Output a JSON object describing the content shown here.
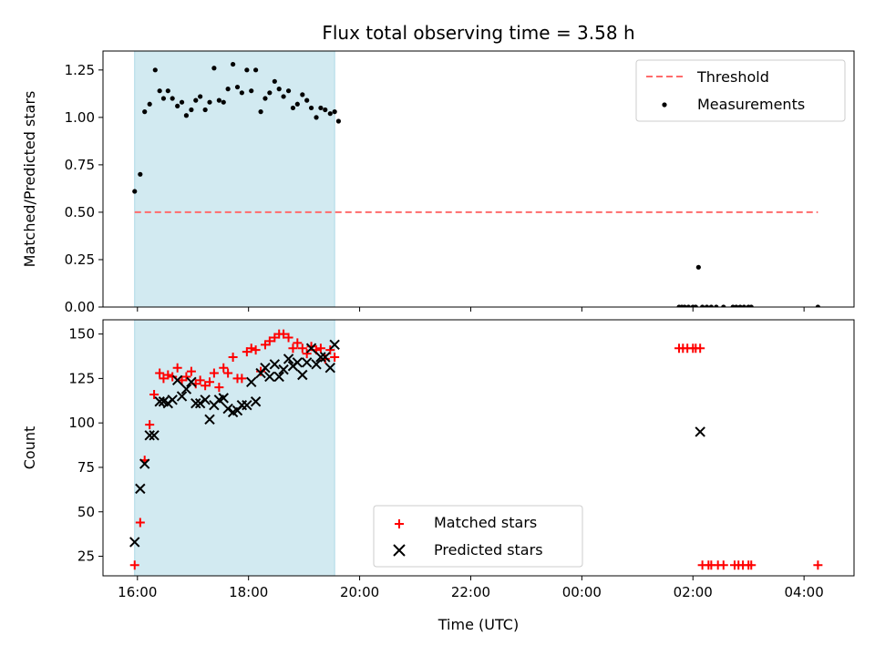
{
  "title": "Flux total observing time = 3.58 h",
  "colors": {
    "band": "#add8e6",
    "threshold": "#ff6b6b",
    "matched": "#ff0000",
    "predicted": "#000000",
    "measurement": "#000000"
  },
  "chart_data": [
    {
      "type": "scatter",
      "ylabel": "Matched/Predicted stars",
      "xlabel": "",
      "x_unit": "hours after 16:00 UTC",
      "xlim": [
        -0.62,
        12.9
      ],
      "ylim": [
        0,
        1.35
      ],
      "yticks": [
        "0.00",
        "0.25",
        "0.50",
        "0.75",
        "1.00",
        "1.25"
      ],
      "shaded_band": [
        -0.05,
        3.55
      ],
      "threshold": {
        "name": "Threshold",
        "value": 0.5,
        "x_range": [
          -0.05,
          12.25
        ]
      },
      "legend": [
        "Threshold",
        "Measurements"
      ],
      "legend_position": "upper-right",
      "series": [
        {
          "name": "Measurements",
          "points": [
            [
              -0.05,
              0.61
            ],
            [
              0.05,
              0.7
            ],
            [
              0.13,
              1.03
            ],
            [
              0.22,
              1.07
            ],
            [
              0.32,
              1.25
            ],
            [
              0.4,
              1.14
            ],
            [
              0.47,
              1.1
            ],
            [
              0.55,
              1.14
            ],
            [
              0.63,
              1.1
            ],
            [
              0.72,
              1.06
            ],
            [
              0.8,
              1.08
            ],
            [
              0.88,
              1.01
            ],
            [
              0.97,
              1.04
            ],
            [
              1.05,
              1.09
            ],
            [
              1.13,
              1.11
            ],
            [
              1.22,
              1.04
            ],
            [
              1.3,
              1.08
            ],
            [
              1.38,
              1.26
            ],
            [
              1.47,
              1.09
            ],
            [
              1.55,
              1.08
            ],
            [
              1.63,
              1.15
            ],
            [
              1.72,
              1.28
            ],
            [
              1.8,
              1.16
            ],
            [
              1.88,
              1.13
            ],
            [
              1.97,
              1.25
            ],
            [
              2.05,
              1.14
            ],
            [
              2.13,
              1.25
            ],
            [
              2.22,
              1.03
            ],
            [
              2.3,
              1.1
            ],
            [
              2.38,
              1.13
            ],
            [
              2.47,
              1.19
            ],
            [
              2.55,
              1.15
            ],
            [
              2.63,
              1.11
            ],
            [
              2.72,
              1.14
            ],
            [
              2.8,
              1.05
            ],
            [
              2.88,
              1.07
            ],
            [
              2.97,
              1.12
            ],
            [
              3.05,
              1.09
            ],
            [
              3.13,
              1.05
            ],
            [
              3.22,
              1.0
            ],
            [
              3.3,
              1.05
            ],
            [
              3.38,
              1.04
            ],
            [
              3.47,
              1.02
            ],
            [
              3.55,
              1.03
            ],
            [
              3.62,
              0.98
            ],
            [
              9.75,
              0.0
            ],
            [
              9.8,
              0.0
            ],
            [
              9.85,
              0.0
            ],
            [
              9.92,
              0.0
            ],
            [
              10.0,
              0.0
            ],
            [
              10.05,
              0.0
            ],
            [
              10.1,
              0.21
            ],
            [
              10.17,
              0.0
            ],
            [
              10.25,
              0.0
            ],
            [
              10.33,
              0.0
            ],
            [
              10.42,
              0.0
            ],
            [
              10.55,
              0.0
            ],
            [
              10.72,
              0.0
            ],
            [
              10.78,
              0.0
            ],
            [
              10.85,
              0.0
            ],
            [
              10.92,
              0.0
            ],
            [
              11.0,
              0.0
            ],
            [
              11.05,
              0.0
            ],
            [
              12.25,
              0.0
            ]
          ]
        }
      ]
    },
    {
      "type": "scatter",
      "ylabel": "Count",
      "xlabel": "Time (UTC)",
      "x_unit": "hours after 16:00 UTC",
      "xlim": [
        -0.62,
        12.9
      ],
      "ylim": [
        14,
        158
      ],
      "yticks": [
        "25",
        "50",
        "75",
        "100",
        "125",
        "150"
      ],
      "xticks": [
        {
          "value": 0,
          "label": "16:00"
        },
        {
          "value": 2,
          "label": "18:00"
        },
        {
          "value": 4,
          "label": "20:00"
        },
        {
          "value": 6,
          "label": "22:00"
        },
        {
          "value": 8,
          "label": "00:00"
        },
        {
          "value": 10,
          "label": "02:00"
        },
        {
          "value": 12,
          "label": "04:00"
        }
      ],
      "shaded_band": [
        -0.05,
        3.55
      ],
      "legend": [
        "Matched stars",
        "Predicted stars"
      ],
      "legend_position": "lower-center",
      "series": [
        {
          "name": "Matched stars",
          "marker": "plus",
          "points": [
            [
              -0.05,
              20
            ],
            [
              0.05,
              44
            ],
            [
              0.13,
              79
            ],
            [
              0.22,
              99
            ],
            [
              0.3,
              116
            ],
            [
              0.4,
              128
            ],
            [
              0.47,
              125
            ],
            [
              0.55,
              127
            ],
            [
              0.63,
              126
            ],
            [
              0.72,
              131
            ],
            [
              0.8,
              124
            ],
            [
              0.88,
              126
            ],
            [
              0.97,
              129
            ],
            [
              1.05,
              122
            ],
            [
              1.13,
              124
            ],
            [
              1.22,
              121
            ],
            [
              1.3,
              123
            ],
            [
              1.38,
              128
            ],
            [
              1.47,
              120
            ],
            [
              1.55,
              131
            ],
            [
              1.63,
              128
            ],
            [
              1.72,
              137
            ],
            [
              1.8,
              125
            ],
            [
              1.88,
              125
            ],
            [
              1.97,
              140
            ],
            [
              2.05,
              142
            ],
            [
              2.13,
              141
            ],
            [
              2.22,
              129
            ],
            [
              2.3,
              144
            ],
            [
              2.38,
              146
            ],
            [
              2.47,
              148
            ],
            [
              2.55,
              150
            ],
            [
              2.63,
              150
            ],
            [
              2.72,
              148
            ],
            [
              2.8,
              142
            ],
            [
              2.88,
              145
            ],
            [
              2.97,
              142
            ],
            [
              3.05,
              139
            ],
            [
              3.13,
              143
            ],
            [
              3.22,
              141
            ],
            [
              3.3,
              142
            ],
            [
              3.38,
              136
            ],
            [
              3.47,
              141
            ],
            [
              3.55,
              137
            ],
            [
              9.75,
              142
            ],
            [
              9.82,
              142
            ],
            [
              9.9,
              142
            ],
            [
              10.0,
              142
            ],
            [
              10.05,
              142
            ],
            [
              10.13,
              142
            ],
            [
              10.17,
              20
            ],
            [
              10.28,
              20
            ],
            [
              10.33,
              20
            ],
            [
              10.45,
              20
            ],
            [
              10.55,
              20
            ],
            [
              10.75,
              20
            ],
            [
              10.82,
              20
            ],
            [
              10.9,
              20
            ],
            [
              11.0,
              20
            ],
            [
              11.05,
              20
            ],
            [
              12.25,
              20
            ]
          ]
        },
        {
          "name": "Predicted stars",
          "marker": "x",
          "points": [
            [
              -0.05,
              33
            ],
            [
              0.05,
              63
            ],
            [
              0.13,
              77
            ],
            [
              0.22,
              93
            ],
            [
              0.3,
              93
            ],
            [
              0.4,
              112
            ],
            [
              0.47,
              112
            ],
            [
              0.55,
              111
            ],
            [
              0.63,
              113
            ],
            [
              0.72,
              124
            ],
            [
              0.8,
              115
            ],
            [
              0.88,
              119
            ],
            [
              0.97,
              123
            ],
            [
              1.05,
              111
            ],
            [
              1.13,
              111
            ],
            [
              1.22,
              113
            ],
            [
              1.3,
              102
            ],
            [
              1.38,
              110
            ],
            [
              1.47,
              113
            ],
            [
              1.55,
              114
            ],
            [
              1.63,
              108
            ],
            [
              1.72,
              106
            ],
            [
              1.8,
              107
            ],
            [
              1.88,
              110
            ],
            [
              1.97,
              110
            ],
            [
              2.05,
              123
            ],
            [
              2.13,
              112
            ],
            [
              2.22,
              128
            ],
            [
              2.3,
              131
            ],
            [
              2.38,
              126
            ],
            [
              2.47,
              133
            ],
            [
              2.55,
              126
            ],
            [
              2.63,
              130
            ],
            [
              2.72,
              136
            ],
            [
              2.8,
              132
            ],
            [
              2.88,
              134
            ],
            [
              2.97,
              127
            ],
            [
              3.05,
              134
            ],
            [
              3.13,
              142
            ],
            [
              3.22,
              133
            ],
            [
              3.3,
              137
            ],
            [
              3.38,
              137
            ],
            [
              3.47,
              131
            ],
            [
              3.55,
              144
            ],
            [
              10.13,
              95
            ]
          ]
        }
      ]
    }
  ]
}
